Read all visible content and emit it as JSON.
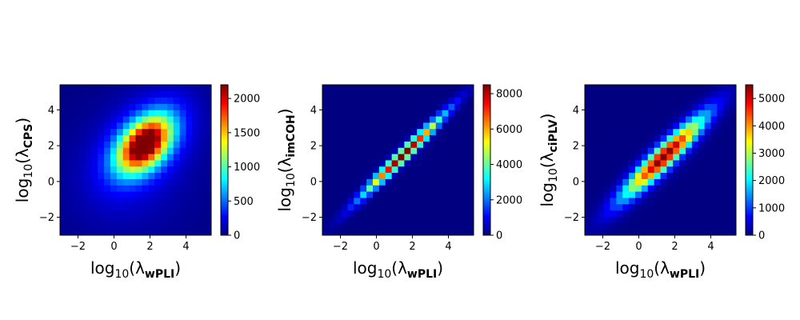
{
  "figure": {
    "background": "#ffffff"
  },
  "chart_data": [
    {
      "type": "heatmap",
      "title": "",
      "xlabel": {
        "base": "log",
        "sub10": "10",
        "open": "(λ",
        "sub": "wPLI",
        "close": ")"
      },
      "ylabel": {
        "base": "log",
        "sub10": "10",
        "open": "(λ",
        "sub": "CPS",
        "close": ")"
      },
      "xlim": [
        -3,
        5.4
      ],
      "ylim": [
        -3,
        5.4
      ],
      "xticks": [
        -2,
        0,
        2,
        4
      ],
      "yticks": [
        -2,
        0,
        2,
        4
      ],
      "bins": 24,
      "colormap": "jet",
      "colorbar": {
        "vmin": 0,
        "vmax": 2200,
        "ticks": [
          0,
          500,
          1000,
          1500,
          2000
        ]
      },
      "density": {
        "kind": "blob",
        "cx": 1.7,
        "cy": 2.1,
        "sx": 1.0,
        "sy": 1.05,
        "rho": 0.45,
        "peak": 2200,
        "base": 90,
        "halo": 380
      }
    },
    {
      "type": "heatmap",
      "title": "",
      "xlabel": {
        "base": "log",
        "sub10": "10",
        "open": "(λ",
        "sub": "wPLI",
        "close": ")"
      },
      "ylabel": {
        "base": "log",
        "sub10": "10",
        "open": "(λ",
        "sub": "imCOH",
        "close": ")"
      },
      "xlim": [
        -3,
        5.4
      ],
      "ylim": [
        -3,
        5.4
      ],
      "xticks": [
        -2,
        0,
        2,
        4
      ],
      "yticks": [
        -2,
        0,
        2,
        4
      ],
      "bins": 24,
      "colormap": "jet",
      "colorbar": {
        "vmin": 0,
        "vmax": 8500,
        "ticks": [
          0,
          2000,
          4000,
          6000,
          8000
        ]
      },
      "density": {
        "kind": "diagonal",
        "center": 1.5,
        "along": 1.5,
        "width": 0.28,
        "peak": 8500,
        "base": 80
      }
    },
    {
      "type": "heatmap",
      "title": "",
      "xlabel": {
        "base": "log",
        "sub10": "10",
        "open": "(λ",
        "sub": "wPLI",
        "close": ")"
      },
      "ylabel": {
        "base": "log",
        "sub10": "10",
        "open": "(λ",
        "sub": "ciPLV",
        "close": ")"
      },
      "xlim": [
        -3,
        5.4
      ],
      "ylim": [
        -3,
        5.4
      ],
      "xticks": [
        -2,
        0,
        2,
        4
      ],
      "yticks": [
        -2,
        0,
        2,
        4
      ],
      "bins": 24,
      "colormap": "jet",
      "colorbar": {
        "vmin": 0,
        "vmax": 5500,
        "ticks": [
          0,
          1000,
          2000,
          3000,
          4000,
          5000
        ]
      },
      "density": {
        "kind": "diagonal",
        "center": 1.4,
        "along": 1.5,
        "width": 0.55,
        "peak": 5500,
        "base": 80
      }
    }
  ]
}
